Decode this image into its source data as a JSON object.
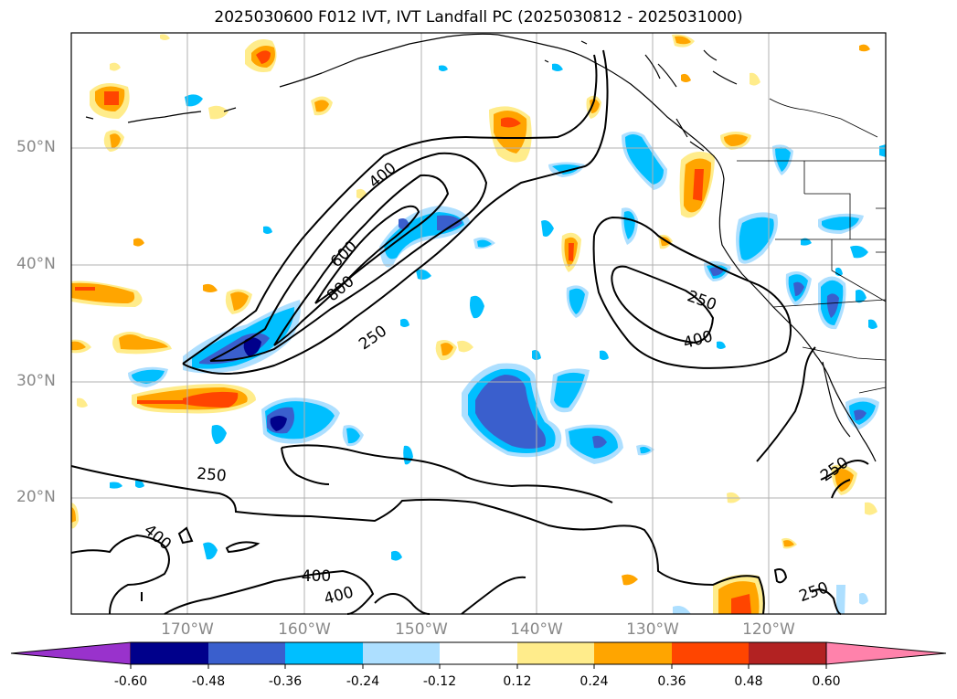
{
  "title": "2025030600 F012 IVT, IVT Landfall PC (2025030812 - 2025031000)",
  "lat_labels": [
    "50°N",
    "40°N",
    "30°N",
    "20°N"
  ],
  "lon_labels": [
    "170°W",
    "160°W",
    "150°W",
    "140°W",
    "130°W",
    "120°W"
  ],
  "contour_labels": [
    "400",
    "600",
    "800",
    "250",
    "250",
    "400",
    "250",
    "400",
    "400",
    "400",
    "250",
    "250"
  ],
  "colorbar": {
    "ticks": [
      "-0.60",
      "-0.48",
      "-0.36",
      "-0.24",
      "-0.12",
      "0.12",
      "0.24",
      "0.36",
      "0.48",
      "0.60"
    ],
    "colors": [
      "#9932CC",
      "#00008B",
      "#3A5FCD",
      "#00BFFF",
      "#ADDFFF",
      "#FFFFFF",
      "#FFEC8B",
      "#FFA500",
      "#FF4500",
      "#B22222",
      "#FF82AB"
    ]
  }
}
